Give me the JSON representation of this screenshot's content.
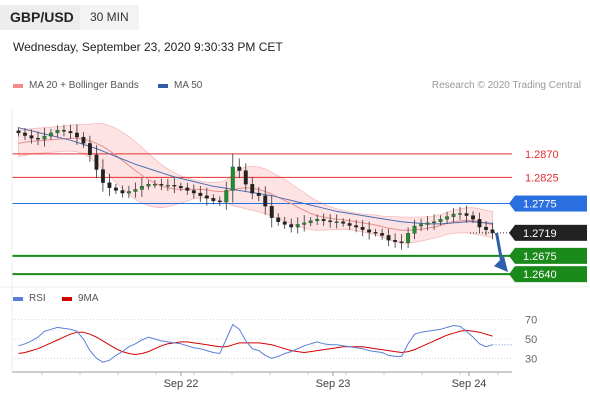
{
  "header": {
    "symbol": "GBP/USD",
    "timeframe": "30 MIN",
    "datetime": "Wednesday, September 23, 2020 9:30:33 PM CET"
  },
  "legend": {
    "ma20_label": "MA 20 + Bollinger Bands",
    "ma20_color": "#f28b8b",
    "ma50_label": "MA 50",
    "ma50_color": "#2f5fa8",
    "copyright": "Research © 2020 Trading Central"
  },
  "rsi_legend": {
    "rsi_label": "RSI",
    "rsi_color": "#5b7fd6",
    "ma9_label": "9MA",
    "ma9_color": "#d40000"
  },
  "chart_data": [
    {
      "type": "candlestick",
      "title": "GBP/USD",
      "x_ticks": [
        "Sep 22",
        "Sep 23",
        "Sep 24"
      ],
      "ylim": [
        1.2625,
        1.295
      ],
      "levels": [
        {
          "value": 1.287,
          "label": "1.2870",
          "kind": "resistance",
          "color": "#e03030"
        },
        {
          "value": 1.2825,
          "label": "1.2825",
          "kind": "resistance",
          "color": "#e03030"
        },
        {
          "value": 1.2775,
          "label": "1.2775",
          "kind": "pivot",
          "color": "#2a6fe0"
        },
        {
          "value": 1.2719,
          "label": "1.2719",
          "kind": "last-price",
          "color": "#222222"
        },
        {
          "value": 1.2675,
          "label": "1.2675",
          "kind": "target",
          "color": "#1a8a1a"
        },
        {
          "value": 1.264,
          "label": "1.2640",
          "kind": "target",
          "color": "#1a8a1a"
        }
      ],
      "series": [
        {
          "name": "Price",
          "close": [
            1.291,
            1.2905,
            1.29,
            1.2898,
            1.2904,
            1.291,
            1.2915,
            1.2913,
            1.291,
            1.2902,
            1.289,
            1.2868,
            1.284,
            1.2815,
            1.2805,
            1.28,
            1.2795,
            1.2798,
            1.2802,
            1.2808,
            1.2812,
            1.2812,
            1.281,
            1.281,
            1.2808,
            1.2805,
            1.28,
            1.2795,
            1.279,
            1.2785,
            1.278,
            1.2778,
            1.28,
            1.2845,
            1.2838,
            1.2812,
            1.2795,
            1.279,
            1.277,
            1.2748,
            1.274,
            1.2735,
            1.273,
            1.2735,
            1.2738,
            1.2742,
            1.2745,
            1.2742,
            1.274,
            1.274,
            1.2737,
            1.2733,
            1.273,
            1.2725,
            1.272,
            1.2718,
            1.2714,
            1.2705,
            1.2702,
            1.27,
            1.2718,
            1.2732,
            1.2735,
            1.2738,
            1.274,
            1.2745,
            1.275,
            1.2755,
            1.2756,
            1.2752,
            1.2745,
            1.273,
            1.2725,
            1.2719
          ]
        },
        {
          "name": "MA 20 + Bollinger Bands",
          "values": [
            1.289,
            1.2892,
            1.2894,
            1.2895,
            1.2896,
            1.2897,
            1.2898,
            1.2899,
            1.29,
            1.29,
            1.2898,
            1.2895,
            1.289,
            1.2884,
            1.2876,
            1.2867,
            1.2857,
            1.2848,
            1.2838,
            1.2829,
            1.2821,
            1.2814,
            1.2808,
            1.2805,
            1.2803,
            1.2802,
            1.2802,
            1.2802,
            1.2802,
            1.2801,
            1.2799,
            1.2798,
            1.2798,
            1.2801,
            1.2804,
            1.2805,
            1.2804,
            1.2802,
            1.2798,
            1.2793,
            1.2787,
            1.2781,
            1.2775,
            1.2768,
            1.2762,
            1.2756,
            1.2752,
            1.2749,
            1.2747,
            1.2745,
            1.2744,
            1.2742,
            1.274,
            1.2738,
            1.2736,
            1.2734,
            1.2731,
            1.2728,
            1.2726,
            1.2724,
            1.2724,
            1.2725,
            1.2726,
            1.2728,
            1.273,
            1.2733,
            1.2737,
            1.274,
            1.2742,
            1.2743,
            1.2742,
            1.274,
            1.2737,
            1.2735
          ]
        },
        {
          "name": "MA 50",
          "values": [
            1.292,
            1.2917,
            1.2914,
            1.2911,
            1.2908,
            1.2905,
            1.2902,
            1.2899,
            1.2896,
            1.2892,
            1.2888,
            1.2884,
            1.288,
            1.2875,
            1.287,
            1.2865,
            1.286,
            1.2855,
            1.285,
            1.2846,
            1.2842,
            1.2838,
            1.2834,
            1.283,
            1.2826,
            1.2823,
            1.282,
            1.2817,
            1.2814,
            1.2811,
            1.2808,
            1.2806,
            1.2804,
            1.2802,
            1.28,
            1.2798,
            1.2796,
            1.2794,
            1.2792,
            1.279,
            1.2787,
            1.2784,
            1.2781,
            1.2778,
            1.2775,
            1.2772,
            1.2769,
            1.2766,
            1.2763,
            1.276,
            1.2758,
            1.2756,
            1.2754,
            1.2752,
            1.275,
            1.2748,
            1.2746,
            1.2744,
            1.2742,
            1.274,
            1.2739,
            1.2738,
            1.2737,
            1.2736,
            1.2736,
            1.2736,
            1.2737,
            1.2738,
            1.2739,
            1.274,
            1.274,
            1.2739,
            1.2738,
            1.2737
          ]
        }
      ],
      "bollinger_halfwidth": [
        0.0025,
        0.0025,
        0.0024,
        0.0024,
        0.0024,
        0.0024,
        0.0024,
        0.0024,
        0.0025,
        0.0026,
        0.0028,
        0.0032,
        0.0038,
        0.0044,
        0.0048,
        0.0052,
        0.0054,
        0.0055,
        0.0055,
        0.0053,
        0.005,
        0.0046,
        0.0041,
        0.0036,
        0.0031,
        0.0026,
        0.0022,
        0.0018,
        0.0016,
        0.0015,
        0.0016,
        0.0018,
        0.0022,
        0.003,
        0.0036,
        0.004,
        0.0042,
        0.0043,
        0.0043,
        0.0042,
        0.0041,
        0.004,
        0.0038,
        0.0036,
        0.0034,
        0.0031,
        0.0028,
        0.0025,
        0.0022,
        0.002,
        0.0018,
        0.0017,
        0.0017,
        0.0017,
        0.0018,
        0.0019,
        0.002,
        0.0022,
        0.0024,
        0.0025,
        0.0025,
        0.0024,
        0.0023,
        0.0022,
        0.0021,
        0.0021,
        0.0021,
        0.0022,
        0.0023,
        0.0024,
        0.0025,
        0.0025,
        0.0025,
        0.0025
      ],
      "forecast_arrow": {
        "from": 1.2719,
        "to": 1.264
      }
    },
    {
      "type": "line",
      "title": "RSI",
      "ylim": [
        20,
        80
      ],
      "y_ticks": [
        70,
        50,
        30
      ],
      "reference_lines": [
        70,
        50,
        30
      ],
      "series": [
        {
          "name": "RSI",
          "values": [
            43,
            45,
            48,
            52,
            58,
            60,
            62,
            61,
            60,
            58,
            50,
            38,
            30,
            26,
            28,
            33,
            37,
            42,
            45,
            49,
            52,
            50,
            48,
            47,
            46,
            45,
            43,
            41,
            40,
            38,
            36,
            35,
            50,
            65,
            60,
            48,
            40,
            38,
            33,
            30,
            32,
            35,
            37,
            40,
            43,
            45,
            47,
            45,
            44,
            44,
            43,
            42,
            41,
            40,
            38,
            37,
            36,
            33,
            32,
            32,
            45,
            55,
            57,
            58,
            59,
            60,
            62,
            64,
            63,
            58,
            52,
            45,
            42,
            44
          ]
        },
        {
          "name": "9MA",
          "values": [
            35,
            36,
            38,
            40,
            43,
            46,
            49,
            52,
            55,
            57,
            57,
            55,
            52,
            48,
            44,
            40,
            37,
            35,
            34,
            35,
            37,
            40,
            43,
            45,
            46,
            47,
            47,
            46,
            45,
            44,
            43,
            42,
            42,
            44,
            46,
            46,
            46,
            46,
            45,
            44,
            42,
            40,
            38,
            37,
            36,
            37,
            38,
            39,
            40,
            41,
            42,
            42,
            42,
            42,
            41,
            40,
            39,
            38,
            37,
            36,
            37,
            39,
            42,
            45,
            48,
            51,
            54,
            56,
            58,
            59,
            58,
            57,
            55,
            53
          ]
        }
      ]
    }
  ]
}
